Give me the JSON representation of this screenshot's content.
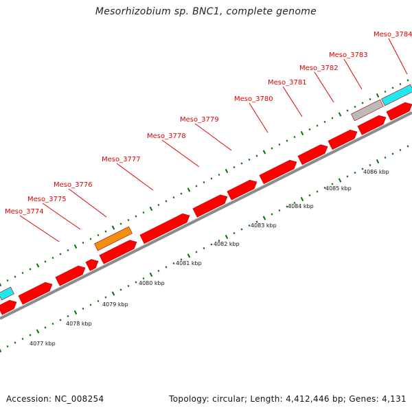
{
  "title": "Mesorhizobium sp. BNC1, complete genome",
  "accession": "Accession: NC_008254",
  "summary": "Topology: circular; Length: 4,412,446 bp; Genes: 4,131",
  "colors": {
    "cds": "#ff0000",
    "orange_feature": "#f09010",
    "cyan_feature": "#20e8f0",
    "grey_feature": "#bbbbbb",
    "backbone": "#8a8a8a",
    "tick": "#007000",
    "label": "#e00000"
  },
  "gene_labels": [
    "Meso_3774",
    "Meso_3775",
    "Meso_3776",
    "Meso_3777",
    "Meso_3778",
    "Meso_3779",
    "Meso_3780",
    "Meso_3781",
    "Meso_3782",
    "Meso_3783",
    "Meso_3784"
  ],
  "kbp_labels": [
    "4077 kbp",
    "4078 kbp",
    "4079 kbp",
    "4080 kbp",
    "4081 kbp",
    "4082 kbp",
    "4083 kbp",
    "4084 kbp",
    "4085 kbp",
    "4086 kbp"
  ]
}
